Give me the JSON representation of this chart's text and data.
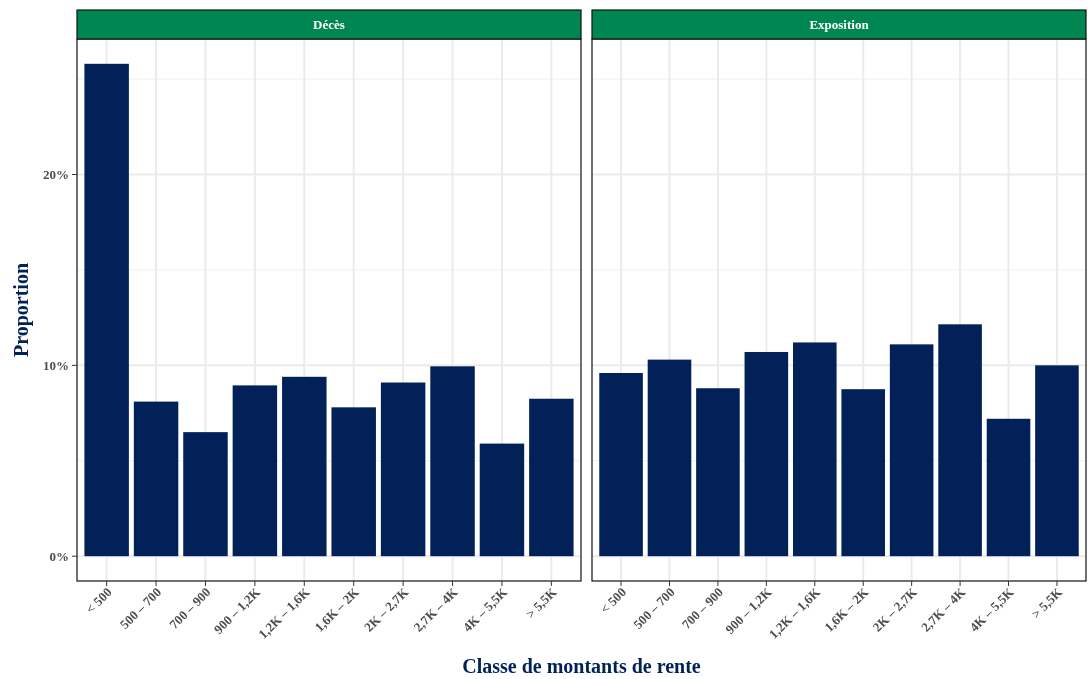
{
  "chart_data": [
    {
      "type": "bar",
      "title": "Décès",
      "xlabel": "Classe de montants de rente",
      "ylabel": "Proportion",
      "categories": [
        "< 500",
        "500 – 700",
        "700 – 900",
        "900 – 1,2K",
        "1,2K – 1,6K",
        "1,6K – 2K",
        "2K – 2,7K",
        "2,7K – 4K",
        "4K – 5,5K",
        "> 5,5K"
      ],
      "values": [
        25.8,
        8.1,
        6.5,
        8.95,
        9.4,
        7.8,
        9.1,
        9.95,
        5.9,
        8.25
      ],
      "color": "#012158",
      "ylim": [
        -1.3,
        27.1
      ],
      "yticks": [
        {
          "value": 0,
          "label": "0%"
        },
        {
          "value": 10,
          "label": "10%"
        },
        {
          "value": 20,
          "label": "20%"
        }
      ],
      "grid": true
    },
    {
      "type": "bar",
      "title": "Exposition",
      "categories": [
        "< 500",
        "500 – 700",
        "700 – 900",
        "900 – 1,2K",
        "1,2K – 1,6K",
        "1,6K – 2K",
        "2K – 2,7K",
        "2,7K – 4K",
        "4K – 5,5K",
        "> 5,5K"
      ],
      "values": [
        9.6,
        10.3,
        8.8,
        10.7,
        11.2,
        8.75,
        11.1,
        12.15,
        7.2,
        10.0
      ],
      "color": "#012158",
      "ylim": [
        -1.3,
        27.1
      ],
      "yticks": [
        {
          "value": 0,
          "label": null
        },
        {
          "value": 10,
          "label": null
        },
        {
          "value": 20,
          "label": null
        }
      ],
      "grid": true,
      "tick_labels": "x"
    }
  ]
}
